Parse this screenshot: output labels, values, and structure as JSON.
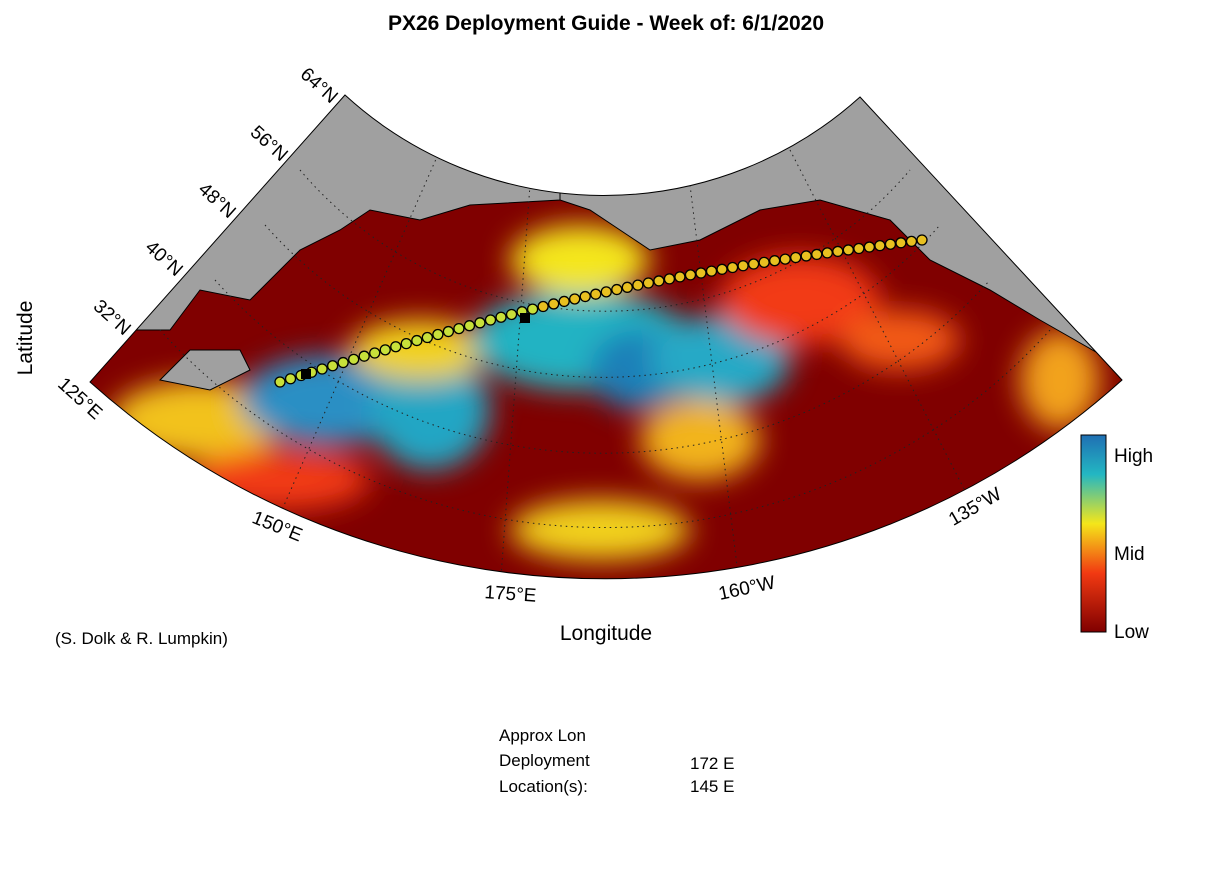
{
  "title": "PX26 Deployment Guide - Week of: 6/1/2020",
  "map": {
    "latitude_labels": [
      "64°N",
      "56°N",
      "48°N",
      "40°N",
      "32°N"
    ],
    "longitude_labels": [
      "125°E",
      "150°E",
      "175°E",
      "160°W",
      "135°W"
    ],
    "y_axis_label": "Latitude",
    "x_axis_label": "Longitude",
    "credit": "(S. Dolk & R. Lumpkin)",
    "colorbar_labels": [
      "High",
      "Mid",
      "Low"
    ]
  },
  "deployment": {
    "header": "Approx Lon",
    "row_labels": [
      "Deployment",
      "Location(s):"
    ],
    "locations": [
      "172 E",
      "145 E"
    ]
  }
}
